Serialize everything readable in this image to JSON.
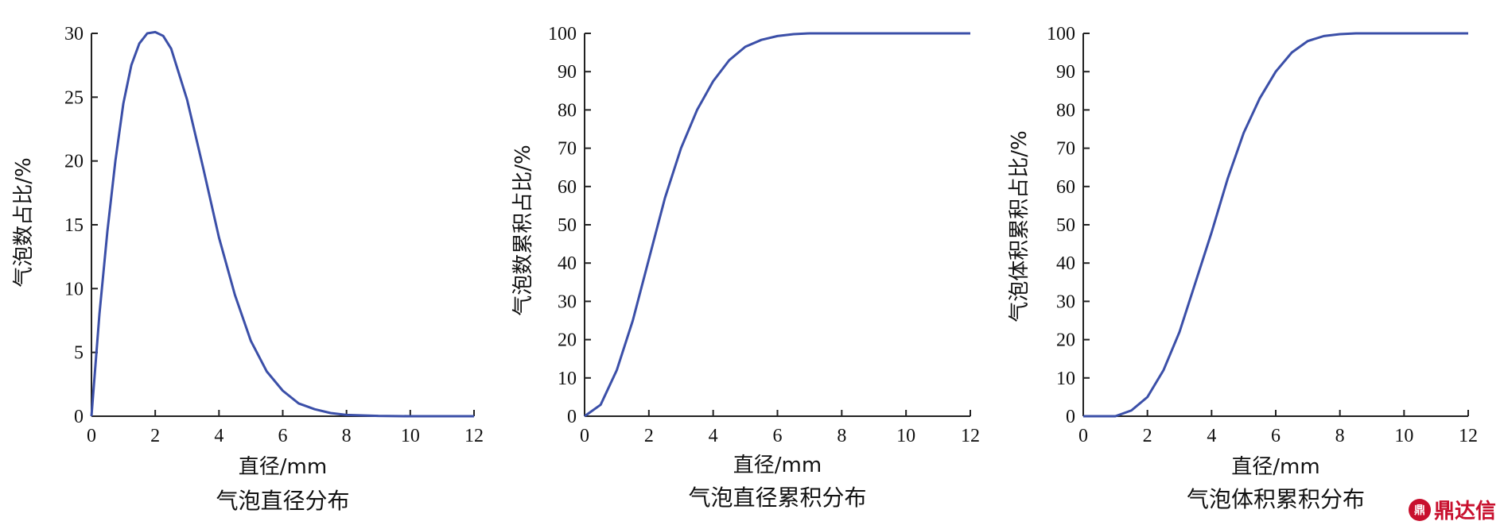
{
  "chart_data": [
    {
      "type": "line",
      "title": "气泡直径分布",
      "xlabel": "直径/mm",
      "ylabel": "气泡数占比/%",
      "xlim": [
        0,
        12
      ],
      "ylim": [
        0,
        30
      ],
      "xticks": [
        0,
        2,
        4,
        6,
        8,
        10,
        12
      ],
      "yticks": [
        0,
        5,
        10,
        15,
        20,
        25,
        30
      ],
      "grid": false,
      "color": "#3b4fa8",
      "series": [
        {
          "x": [
            0,
            0.25,
            0.5,
            0.75,
            1,
            1.25,
            1.5,
            1.75,
            2,
            2.25,
            2.5,
            3,
            3.5,
            4,
            4.5,
            5,
            5.5,
            6,
            6.5,
            7,
            7.5,
            8,
            9,
            10,
            12
          ],
          "y": [
            0,
            8,
            14.5,
            20,
            24.5,
            27.5,
            29.2,
            30,
            30.1,
            29.8,
            28.8,
            24.8,
            19.5,
            14,
            9.5,
            5.9,
            3.5,
            2,
            1,
            0.55,
            0.25,
            0.1,
            0.02,
            0,
            0
          ]
        }
      ]
    },
    {
      "type": "line",
      "title": "气泡直径累积分布",
      "xlabel": "直径/mm",
      "ylabel": "气泡数累积占比/%",
      "xlim": [
        0,
        12
      ],
      "ylim": [
        0,
        100
      ],
      "xticks": [
        0,
        2,
        4,
        6,
        8,
        10,
        12
      ],
      "yticks": [
        0,
        10,
        20,
        30,
        40,
        50,
        60,
        70,
        80,
        90,
        100
      ],
      "grid": false,
      "color": "#3b4fa8",
      "series": [
        {
          "x": [
            0,
            0.5,
            1,
            1.5,
            2,
            2.5,
            3,
            3.5,
            4,
            4.5,
            5,
            5.5,
            6,
            6.5,
            7,
            8,
            9,
            10,
            12
          ],
          "y": [
            0,
            3,
            12,
            25,
            41,
            57,
            70,
            80,
            87.5,
            93,
            96.5,
            98.3,
            99.3,
            99.8,
            100,
            100,
            100,
            100,
            100
          ]
        }
      ]
    },
    {
      "type": "line",
      "title": "气泡体积累积分布",
      "xlabel": "直径/mm",
      "ylabel": "气泡体积累积占比/%",
      "xlim": [
        0,
        12
      ],
      "ylim": [
        0,
        100
      ],
      "xticks": [
        0,
        2,
        4,
        6,
        8,
        10,
        12
      ],
      "yticks": [
        0,
        10,
        20,
        30,
        40,
        50,
        60,
        70,
        80,
        90,
        100
      ],
      "grid": false,
      "color": "#3b4fa8",
      "series": [
        {
          "x": [
            0,
            0.5,
            1,
            1.5,
            2,
            2.5,
            3,
            3.5,
            4,
            4.5,
            5,
            5.5,
            6,
            6.5,
            7,
            7.5,
            8,
            8.5,
            9,
            10,
            12
          ],
          "y": [
            0,
            0,
            0,
            1.5,
            5,
            12,
            22,
            35,
            48,
            62,
            74,
            83,
            90,
            95,
            98,
            99.3,
            99.8,
            100,
            100,
            100,
            100
          ]
        }
      ]
    }
  ],
  "watermark": {
    "logo_text": "鼎",
    "text": "鼎达信"
  }
}
